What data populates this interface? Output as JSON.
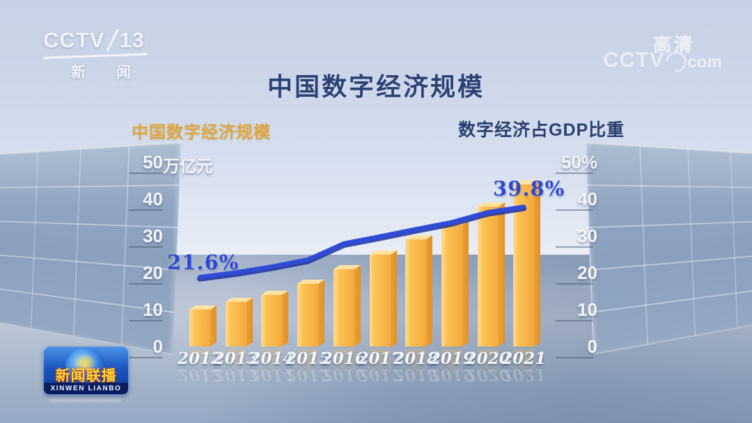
{
  "broadcast": {
    "channel_logo": {
      "brand": "CCTV",
      "number": "13",
      "name_char1": "新",
      "name_char2": "闻"
    },
    "watermark": {
      "brand": "CCTV",
      "suffix": "com",
      "hd_label": "高清"
    },
    "program_badge": {
      "title": "新闻联播",
      "romanized": "XINWEN LIANBO"
    }
  },
  "header": {
    "title": "中国数字经济规模"
  },
  "legends": {
    "left": "中国数字经济规模",
    "right": "数字经济占GDP比重"
  },
  "axes": {
    "left": {
      "ticks": [
        {
          "label": "50",
          "unit": "万亿元",
          "value": 50
        },
        {
          "label": "40",
          "unit": "",
          "value": 40
        },
        {
          "label": "30",
          "unit": "",
          "value": 30
        },
        {
          "label": "20",
          "unit": "",
          "value": 20
        },
        {
          "label": "10",
          "unit": "",
          "value": 10
        },
        {
          "label": "0",
          "unit": "",
          "value": 0
        }
      ]
    },
    "right": {
      "ticks": [
        {
          "label": "50%",
          "unit": "",
          "value": 50
        },
        {
          "label": "40",
          "unit": "",
          "value": 40
        },
        {
          "label": "30",
          "unit": "",
          "value": 30
        },
        {
          "label": "20",
          "unit": "",
          "value": 20
        },
        {
          "label": "10",
          "unit": "",
          "value": 10
        },
        {
          "label": "0",
          "unit": "",
          "value": 0
        }
      ]
    }
  },
  "chart_data": {
    "type": "combo",
    "title": "中国数字经济规模",
    "categories": [
      "2012",
      "2013",
      "2014",
      "2015",
      "2016",
      "2017",
      "2018",
      "2019",
      "2020",
      "2021"
    ],
    "series": [
      {
        "name": "中国数字经济规模",
        "type": "bar",
        "axis": "left",
        "unit": "万亿元",
        "color": "#f8bb4d",
        "values": [
          10,
          12,
          14,
          17,
          21,
          25,
          29,
          33,
          38,
          44
        ]
      },
      {
        "name": "数字经济占GDP比重",
        "type": "line",
        "axis": "right",
        "unit": "%",
        "color": "#2f4cd8",
        "values": [
          21.6,
          22.8,
          24.3,
          26.1,
          30.3,
          32.1,
          34.0,
          35.8,
          38.4,
          39.8
        ],
        "point_labels": [
          {
            "category": "2012",
            "text": "21.6%"
          },
          {
            "category": "2021",
            "text": "39.8%"
          }
        ]
      }
    ],
    "left_axis": {
      "label": "万亿元",
      "range": [
        0,
        50
      ],
      "ticks": [
        0,
        10,
        20,
        30,
        40,
        50
      ]
    },
    "right_axis": {
      "label": "%",
      "range": [
        0,
        50
      ],
      "ticks": [
        0,
        10,
        20,
        30,
        40,
        50
      ]
    },
    "legend_position": "top",
    "grid": false
  },
  "colors": {
    "bar": "#f8bb4d",
    "line": "#2f4cd8",
    "title_text": "#2c4276",
    "left_legend_text": "#dfa73e",
    "axis_text": "#f3f6fa"
  }
}
